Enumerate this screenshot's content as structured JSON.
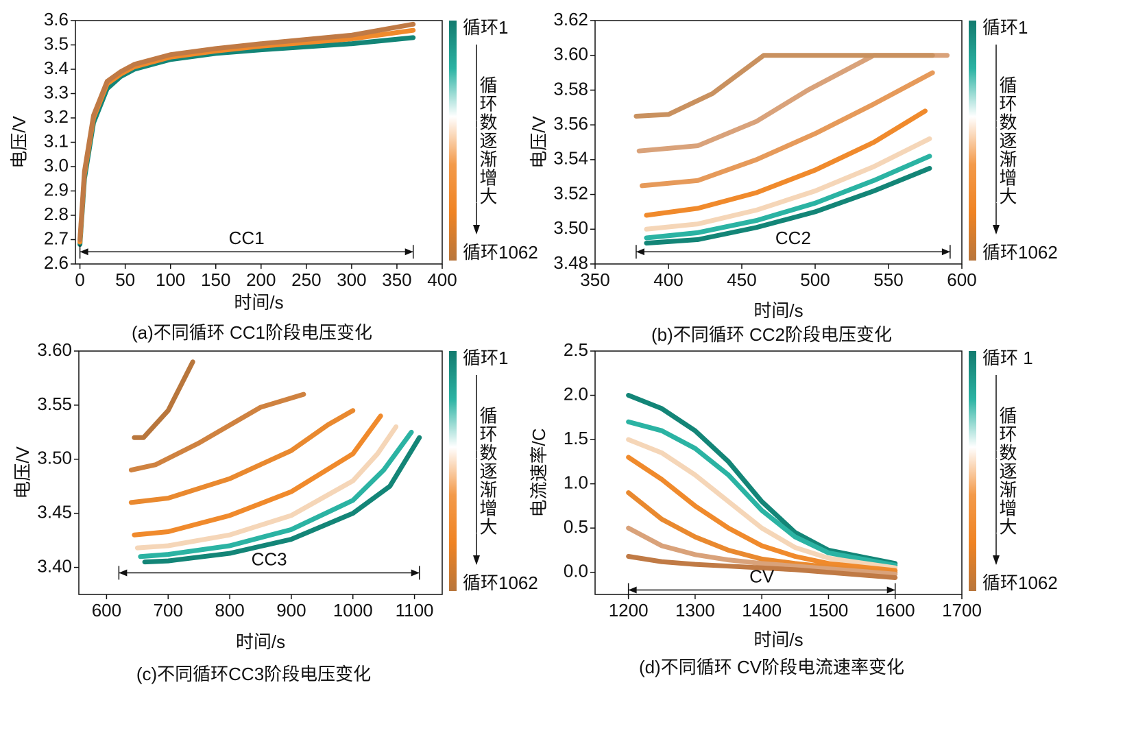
{
  "chart_data": [
    {
      "type": "line",
      "title": "(a)不同循环 CC1阶段电压变化",
      "x_label": "时间/s",
      "y_label": "电压/V",
      "xlim": [
        -5,
        400
      ],
      "xticks": [
        0,
        50,
        100,
        150,
        200,
        250,
        300,
        350,
        400
      ],
      "ylim": [
        2.6,
        3.6
      ],
      "yticks": [
        2.6,
        2.7,
        2.8,
        2.9,
        {
          "value": 3,
          "label": "3.0"
        },
        3.1,
        3.2,
        3.3,
        3.4,
        3.5,
        3.6
      ],
      "series": [
        {
          "color": "#138577",
          "x": [
            0,
            5,
            15,
            30,
            45,
            60,
            100,
            150,
            200,
            300,
            368
          ],
          "values": [
            2.68,
            2.95,
            3.18,
            3.32,
            3.37,
            3.4,
            3.44,
            3.465,
            3.48,
            3.505,
            3.53
          ]
        },
        {
          "color": "#f08a2c",
          "x": [
            0,
            5,
            15,
            30,
            45,
            60,
            100,
            150,
            200,
            300,
            368
          ],
          "values": [
            2.69,
            2.97,
            3.2,
            3.34,
            3.38,
            3.41,
            3.45,
            3.475,
            3.495,
            3.525,
            3.56
          ]
        },
        {
          "color": "#c07a45",
          "x": [
            0,
            5,
            15,
            30,
            45,
            60,
            100,
            150,
            200,
            300,
            368
          ],
          "values": [
            2.7,
            2.98,
            3.21,
            3.35,
            3.39,
            3.42,
            3.46,
            3.485,
            3.505,
            3.54,
            3.585
          ]
        }
      ],
      "annotation": {
        "text": "CC1",
        "x": [
          0,
          368
        ],
        "y": 2.65
      },
      "colorbar": {
        "colors": [
          "#127a6e",
          "#2bb3a3",
          "#ffffff",
          "#f39a4a",
          "#ef8323",
          "#b8763c"
        ],
        "top_label": "循环1",
        "bottom_label": "循环1062",
        "label": "循环数逐渐增大"
      }
    },
    {
      "type": "line",
      "title": "(b)不同循环 CC2阶段电压变化",
      "x_label": "时间/s",
      "y_label": "电压/V",
      "xlim": [
        350,
        600
      ],
      "xticks": [
        350,
        400,
        450,
        500,
        550,
        600
      ],
      "ylim": [
        3.48,
        3.62
      ],
      "yticks": [
        3.48,
        {
          "value": 3.5,
          "label": "3.50"
        },
        3.52,
        3.54,
        3.56,
        3.58,
        {
          "value": 3.6,
          "label": "3.60"
        },
        3.62
      ],
      "series": [
        {
          "color": "#138577",
          "x": [
            385,
            420,
            460,
            500,
            540,
            578
          ],
          "values": [
            3.492,
            3.494,
            3.501,
            3.51,
            3.522,
            3.535
          ]
        },
        {
          "color": "#2bb3a3",
          "x": [
            385,
            420,
            460,
            500,
            540,
            578
          ],
          "values": [
            3.495,
            3.498,
            3.505,
            3.515,
            3.528,
            3.542
          ]
        },
        {
          "color": "#f5d6b8",
          "x": [
            385,
            420,
            460,
            500,
            540,
            578
          ],
          "values": [
            3.5,
            3.503,
            3.511,
            3.522,
            3.536,
            3.552
          ]
        },
        {
          "color": "#f08a2c",
          "x": [
            385,
            420,
            460,
            500,
            540,
            575
          ],
          "values": [
            3.508,
            3.512,
            3.521,
            3.534,
            3.55,
            3.568
          ]
        },
        {
          "color": "#e69a5a",
          "x": [
            382,
            420,
            460,
            500,
            540,
            580
          ],
          "values": [
            3.525,
            3.528,
            3.54,
            3.555,
            3.572,
            3.59
          ]
        },
        {
          "color": "#d9a27a",
          "x": [
            380,
            420,
            460,
            495,
            540,
            590
          ],
          "values": [
            3.545,
            3.548,
            3.562,
            3.58,
            3.6,
            3.6
          ]
        },
        {
          "color": "#c9915f",
          "x": [
            378,
            400,
            430,
            465,
            520,
            580
          ],
          "values": [
            3.565,
            3.566,
            3.578,
            3.6,
            3.6,
            3.6
          ]
        }
      ],
      "annotation": {
        "text": "CC2",
        "x": [
          378,
          592
        ],
        "y": 3.487
      },
      "colorbar": {
        "colors": [
          "#127a6e",
          "#2bb3a3",
          "#ffffff",
          "#f39a4a",
          "#ef8323",
          "#b8763c"
        ],
        "top_label": "循环1",
        "bottom_label": "循环1062",
        "label": "循环数逐渐增大"
      }
    },
    {
      "type": "line",
      "title": "(c)不同循环CC3阶段电压变化",
      "x_label": "时间/s",
      "y_label": "电压/V",
      "xlim": [
        555,
        1145
      ],
      "xticks": [
        600,
        700,
        800,
        900,
        1000,
        1100
      ],
      "ylim": [
        3.375,
        3.6
      ],
      "yticks": [
        {
          "value": 3.4,
          "label": "3.40"
        },
        3.45,
        {
          "value": 3.5,
          "label": "3.50"
        },
        3.55,
        {
          "value": 3.6,
          "label": "3.60"
        }
      ],
      "series": [
        {
          "color": "#138577",
          "x": [
            662,
            700,
            800,
            900,
            1000,
            1060,
            1108
          ],
          "values": [
            3.405,
            3.406,
            3.413,
            3.426,
            3.45,
            3.475,
            3.52
          ]
        },
        {
          "color": "#2bb3a3",
          "x": [
            655,
            700,
            800,
            900,
            1000,
            1050,
            1095
          ],
          "values": [
            3.41,
            3.412,
            3.42,
            3.435,
            3.462,
            3.49,
            3.525
          ]
        },
        {
          "color": "#f5d6b8",
          "x": [
            650,
            700,
            800,
            900,
            1000,
            1040,
            1070
          ],
          "values": [
            3.418,
            3.42,
            3.43,
            3.448,
            3.48,
            3.505,
            3.53
          ]
        },
        {
          "color": "#f08a2c",
          "x": [
            645,
            700,
            800,
            900,
            1000,
            1045
          ],
          "values": [
            3.43,
            3.433,
            3.448,
            3.47,
            3.505,
            3.54
          ]
        },
        {
          "color": "#e9892f",
          "x": [
            640,
            700,
            800,
            900,
            960,
            1000
          ],
          "values": [
            3.46,
            3.464,
            3.482,
            3.508,
            3.532,
            3.545
          ]
        },
        {
          "color": "#cf8240",
          "x": [
            640,
            680,
            750,
            850,
            920
          ],
          "values": [
            3.49,
            3.495,
            3.515,
            3.548,
            3.56
          ]
        },
        {
          "color": "#b8763c",
          "x": [
            645,
            660,
            700,
            740
          ],
          "values": [
            3.52,
            3.52,
            3.545,
            3.59
          ]
        }
      ],
      "annotation": {
        "text": "CC3",
        "x": [
          620,
          1108
        ],
        "y": 3.395
      },
      "colorbar": {
        "colors": [
          "#127a6e",
          "#2bb3a3",
          "#ffffff",
          "#f39a4a",
          "#ef8323",
          "#b8763c"
        ],
        "top_label": "循环1",
        "bottom_label": "循环1062",
        "label": "循环数逐渐增大"
      }
    },
    {
      "type": "line",
      "title": "(d)不同循环 CV阶段电流速率变化",
      "x_label": "时间/s",
      "y_label": "电流速率/C",
      "xlim": [
        1150,
        1700
      ],
      "xticks": [
        1200,
        1300,
        1400,
        1500,
        1600,
        1700
      ],
      "ylim": [
        -0.25,
        2.5
      ],
      "yticks": [
        {
          "value": 0,
          "label": "0.0"
        },
        0.5,
        {
          "value": 1,
          "label": "1.0"
        },
        1.5,
        {
          "value": 2,
          "label": "2.0"
        },
        2.5
      ],
      "series": [
        {
          "color": "#138577",
          "x": [
            1200,
            1250,
            1300,
            1350,
            1400,
            1450,
            1500,
            1600
          ],
          "values": [
            2.0,
            1.85,
            1.6,
            1.25,
            0.8,
            0.45,
            0.25,
            0.1
          ]
        },
        {
          "color": "#2bb3a3",
          "x": [
            1200,
            1250,
            1300,
            1350,
            1400,
            1450,
            1500,
            1600
          ],
          "values": [
            1.7,
            1.6,
            1.4,
            1.1,
            0.7,
            0.4,
            0.22,
            0.08
          ]
        },
        {
          "color": "#f5d6b8",
          "x": [
            1200,
            1250,
            1300,
            1350,
            1400,
            1450,
            1500,
            1600
          ],
          "values": [
            1.5,
            1.35,
            1.1,
            0.8,
            0.5,
            0.28,
            0.16,
            0.05
          ]
        },
        {
          "color": "#f08a2c",
          "x": [
            1200,
            1250,
            1300,
            1350,
            1400,
            1450,
            1500,
            1600
          ],
          "values": [
            1.3,
            1.05,
            0.75,
            0.5,
            0.3,
            0.18,
            0.1,
            0.02
          ]
        },
        {
          "color": "#e9892f",
          "x": [
            1200,
            1250,
            1300,
            1350,
            1400,
            1450,
            1500,
            1600
          ],
          "values": [
            0.9,
            0.6,
            0.4,
            0.25,
            0.15,
            0.1,
            0.06,
            0.0
          ]
        },
        {
          "color": "#d9a27a",
          "x": [
            1200,
            1250,
            1300,
            1350,
            1400,
            1450,
            1500,
            1600
          ],
          "values": [
            0.5,
            0.3,
            0.2,
            0.14,
            0.1,
            0.07,
            0.04,
            -0.02
          ]
        },
        {
          "color": "#c07a45",
          "x": [
            1200,
            1250,
            1300,
            1350,
            1400,
            1450,
            1500,
            1600
          ],
          "values": [
            0.18,
            0.12,
            0.09,
            0.07,
            0.05,
            0.03,
            0.0,
            -0.06
          ]
        }
      ],
      "annotation": {
        "text": "CV",
        "x": [
          1200,
          1600
        ],
        "y": -0.2
      },
      "colorbar": {
        "colors": [
          "#127a6e",
          "#2bb3a3",
          "#ffffff",
          "#f39a4a",
          "#ef8323",
          "#b8763c"
        ],
        "top_label": "循环 1",
        "bottom_label": "循环1062",
        "label": "循环数逐渐增大"
      }
    }
  ]
}
